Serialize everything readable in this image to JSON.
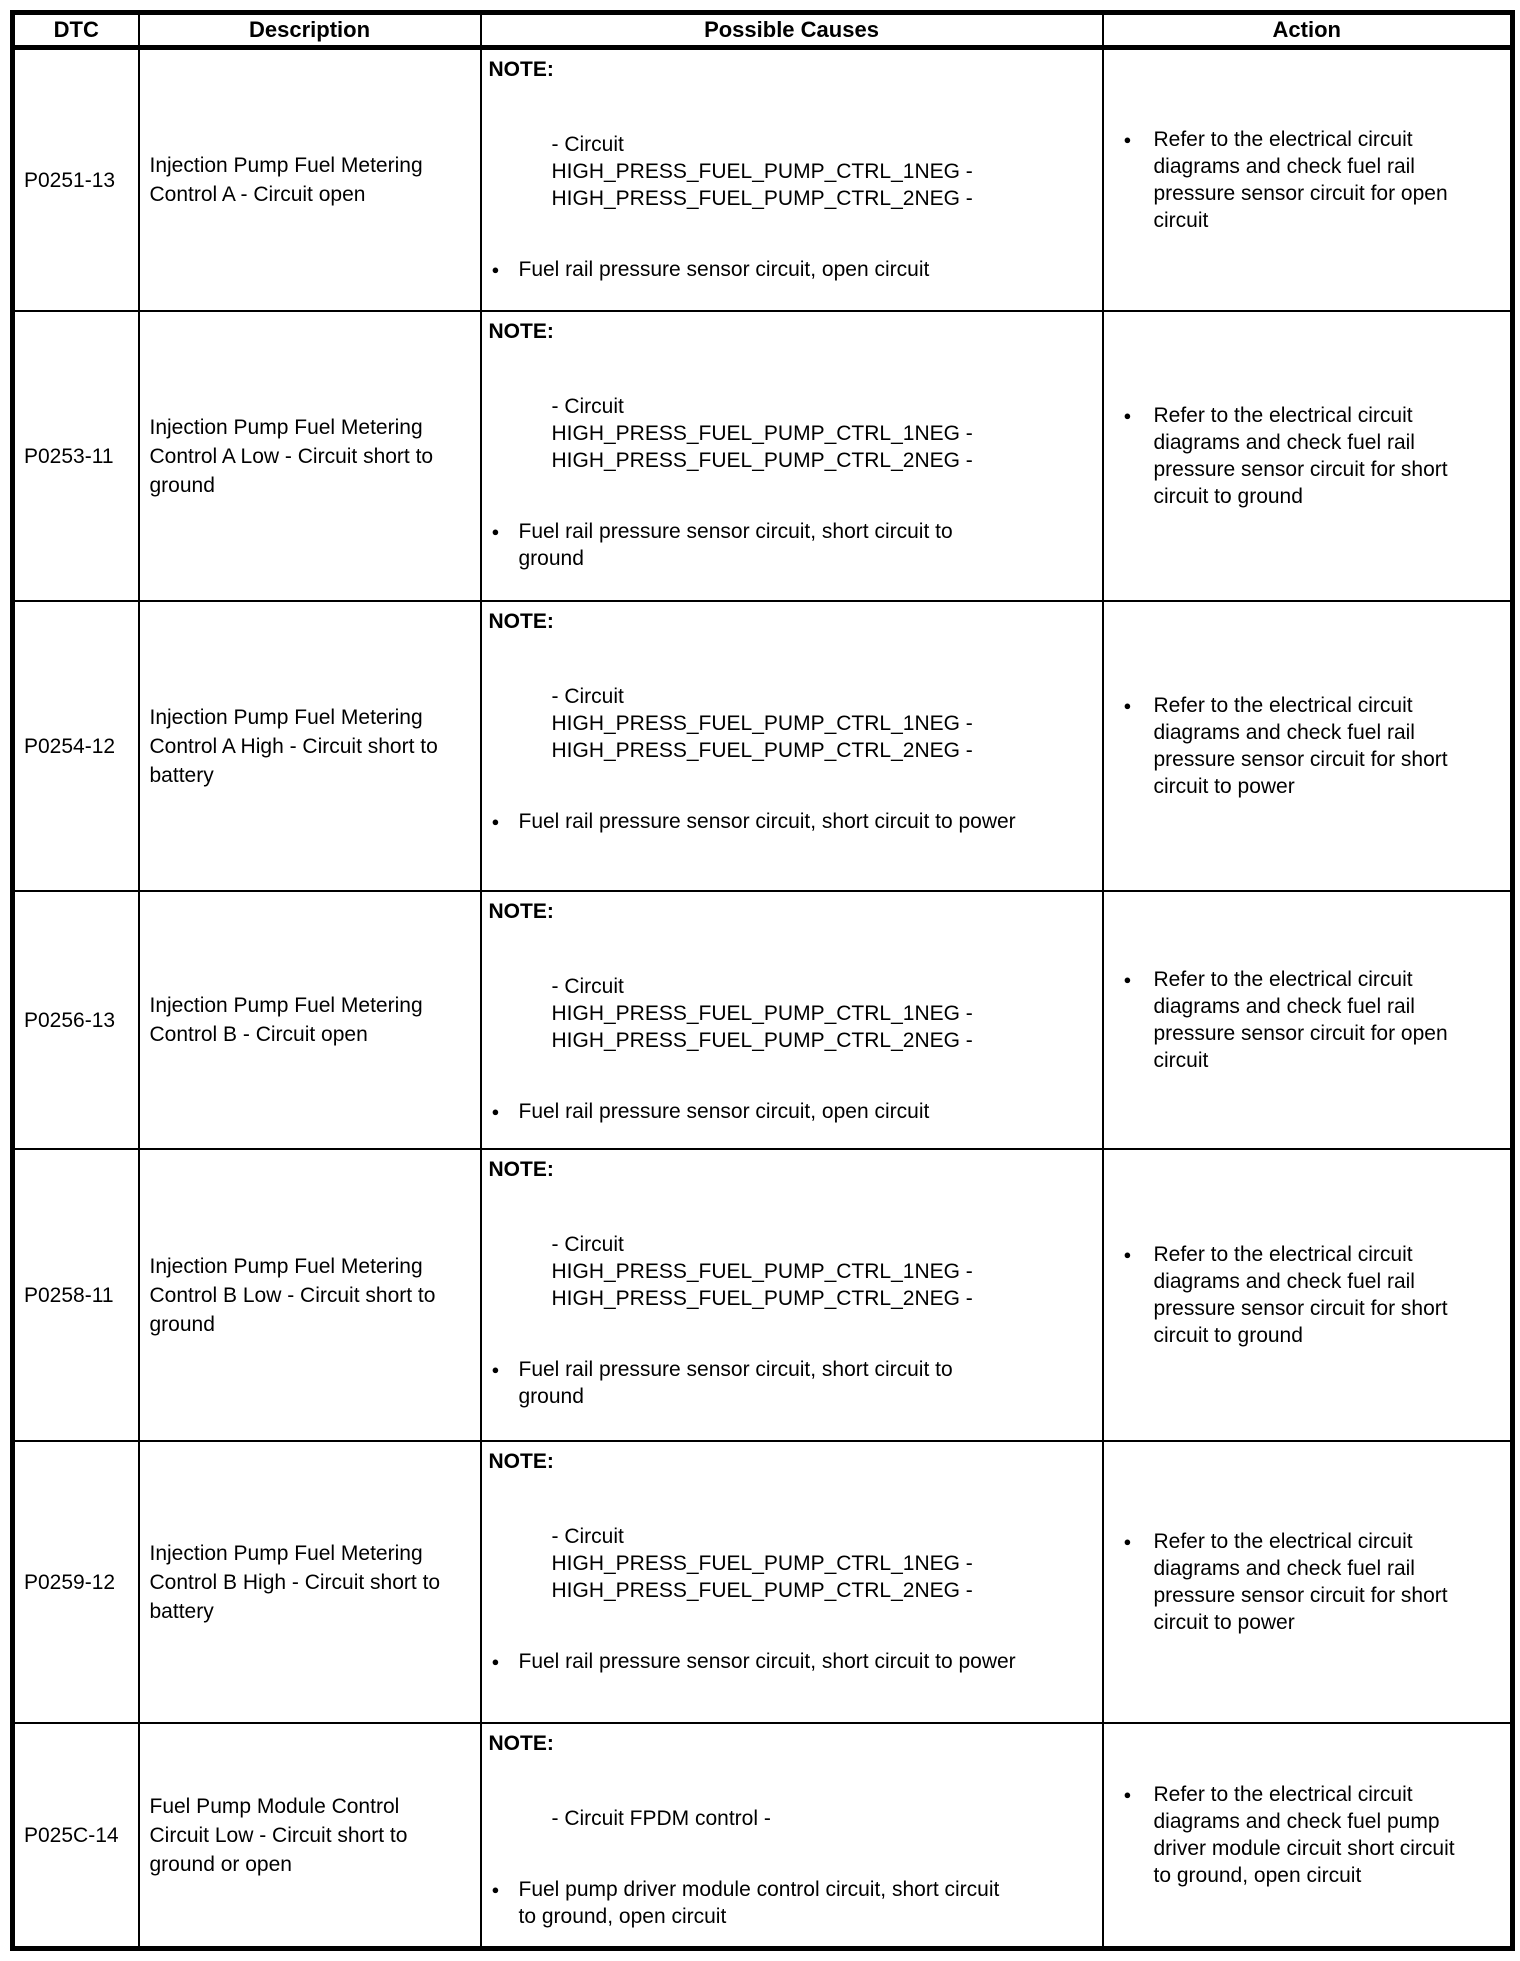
{
  "table": {
    "headers": [
      "DTC",
      "Description",
      "Possible Causes",
      "Action"
    ],
    "note_label": "NOTE:",
    "bullet_glyph": "●",
    "rows": [
      {
        "dtc": "P0251-13",
        "description": "Injection Pump Fuel Metering Control A - Circuit open",
        "note_lines": [
          "- Circuit",
          "HIGH_PRESS_FUEL_PUMP_CTRL_1NEG -",
          "HIGH_PRESS_FUEL_PUMP_CTRL_2NEG -"
        ],
        "cause": "Fuel rail pressure sensor circuit, open circuit",
        "action": "Refer to the electrical circuit diagrams and check fuel rail pressure sensor circuit for open circuit"
      },
      {
        "dtc": "P0253-11",
        "description": "Injection Pump Fuel Metering Control A Low - Circuit short to ground",
        "note_lines": [
          "- Circuit",
          "HIGH_PRESS_FUEL_PUMP_CTRL_1NEG -",
          "HIGH_PRESS_FUEL_PUMP_CTRL_2NEG -"
        ],
        "cause": "Fuel rail pressure sensor circuit, short circuit to ground",
        "action": "Refer to the electrical circuit diagrams and check fuel rail pressure sensor circuit for short circuit to ground"
      },
      {
        "dtc": "P0254-12",
        "description": "Injection Pump Fuel Metering Control A High - Circuit short to battery",
        "note_lines": [
          "- Circuit",
          "HIGH_PRESS_FUEL_PUMP_CTRL_1NEG -",
          "HIGH_PRESS_FUEL_PUMP_CTRL_2NEG -"
        ],
        "cause": "Fuel rail pressure sensor circuit, short circuit to power",
        "action": "Refer to the electrical circuit diagrams and check fuel rail pressure sensor circuit for short circuit to power"
      },
      {
        "dtc": "P0256-13",
        "description": "Injection Pump Fuel Metering Control B - Circuit open",
        "note_lines": [
          "- Circuit",
          "HIGH_PRESS_FUEL_PUMP_CTRL_1NEG -",
          "HIGH_PRESS_FUEL_PUMP_CTRL_2NEG -"
        ],
        "cause": "Fuel rail pressure sensor circuit, open circuit",
        "action": "Refer to the electrical circuit diagrams and check fuel rail pressure sensor circuit for open circuit"
      },
      {
        "dtc": "P0258-11",
        "description": "Injection Pump Fuel Metering Control B Low - Circuit short to ground",
        "note_lines": [
          "- Circuit",
          "HIGH_PRESS_FUEL_PUMP_CTRL_1NEG -",
          "HIGH_PRESS_FUEL_PUMP_CTRL_2NEG -"
        ],
        "cause": "Fuel rail pressure sensor circuit, short circuit to ground",
        "action": "Refer to the electrical circuit diagrams and check fuel rail pressure sensor circuit for short circuit to ground"
      },
      {
        "dtc": "P0259-12",
        "description": "Injection Pump Fuel Metering Control B High - Circuit short to battery",
        "note_lines": [
          "- Circuit",
          "HIGH_PRESS_FUEL_PUMP_CTRL_1NEG -",
          "HIGH_PRESS_FUEL_PUMP_CTRL_2NEG -"
        ],
        "cause": "Fuel rail pressure sensor circuit, short circuit to power",
        "action": "Refer to the electrical circuit diagrams and check fuel rail pressure sensor circuit for short circuit to power"
      },
      {
        "dtc": "P025C-14",
        "description": "Fuel Pump Module Control Circuit Low - Circuit short to ground or open",
        "note_lines": [
          "- Circuit FPDM control -"
        ],
        "cause": "Fuel pump driver module control circuit, short circuit to ground, open circuit",
        "action": "Refer to the electrical circuit diagrams and check fuel pump driver module circuit short circuit to ground, open circuit"
      }
    ]
  }
}
